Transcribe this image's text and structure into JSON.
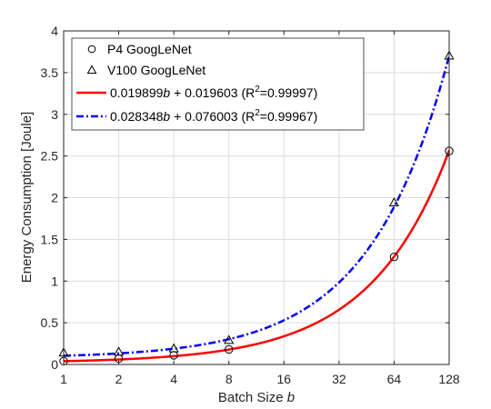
{
  "chart_data": {
    "type": "scatter",
    "xlabel": "Batch Size",
    "xlabel_var": "b",
    "ylabel": "Energy Consumption [Joule]",
    "x_scale": "log2",
    "xlim": [
      1,
      128
    ],
    "ylim": [
      0,
      4
    ],
    "x_ticks": [
      1,
      2,
      4,
      8,
      16,
      32,
      64,
      128
    ],
    "x_tick_labels": [
      "1",
      "2",
      "4",
      "8",
      "16",
      "32",
      "64",
      "128"
    ],
    "y_ticks": [
      0,
      0.5,
      1,
      1.5,
      2,
      2.5,
      3,
      3.5,
      4
    ],
    "y_tick_labels": [
      "0",
      "0.5",
      "1",
      "1.5",
      "2",
      "2.5",
      "3",
      "3.5",
      "4"
    ],
    "grid": true,
    "legend_position": "top-left",
    "series": [
      {
        "name": "P4 GoogLeNet",
        "kind": "marker",
        "marker": "circle",
        "color": "#000000",
        "x": [
          1,
          2,
          4,
          8,
          64,
          128
        ],
        "y": [
          0.04,
          0.07,
          0.11,
          0.18,
          1.29,
          2.56
        ]
      },
      {
        "name": "V100 GoogLeNet",
        "kind": "marker",
        "marker": "triangle",
        "color": "#000000",
        "x": [
          1,
          2,
          4,
          8,
          64,
          128
        ],
        "y": [
          0.14,
          0.15,
          0.19,
          0.29,
          1.94,
          3.7
        ]
      },
      {
        "kind": "fit",
        "style": "solid",
        "color": "#ff0000",
        "slope": 0.019899,
        "intercept": 0.019603,
        "label_parts": [
          "0.019899",
          "b",
          " + 0.019603 (R",
          "2",
          "=0.99997)"
        ]
      },
      {
        "kind": "fit",
        "style": "dashdot",
        "color": "#0000ff",
        "slope": 0.028348,
        "intercept": 0.076003,
        "label_parts": [
          "0.028348",
          "b",
          " + 0.076003 (R",
          "2",
          "=0.99967)"
        ]
      }
    ]
  }
}
